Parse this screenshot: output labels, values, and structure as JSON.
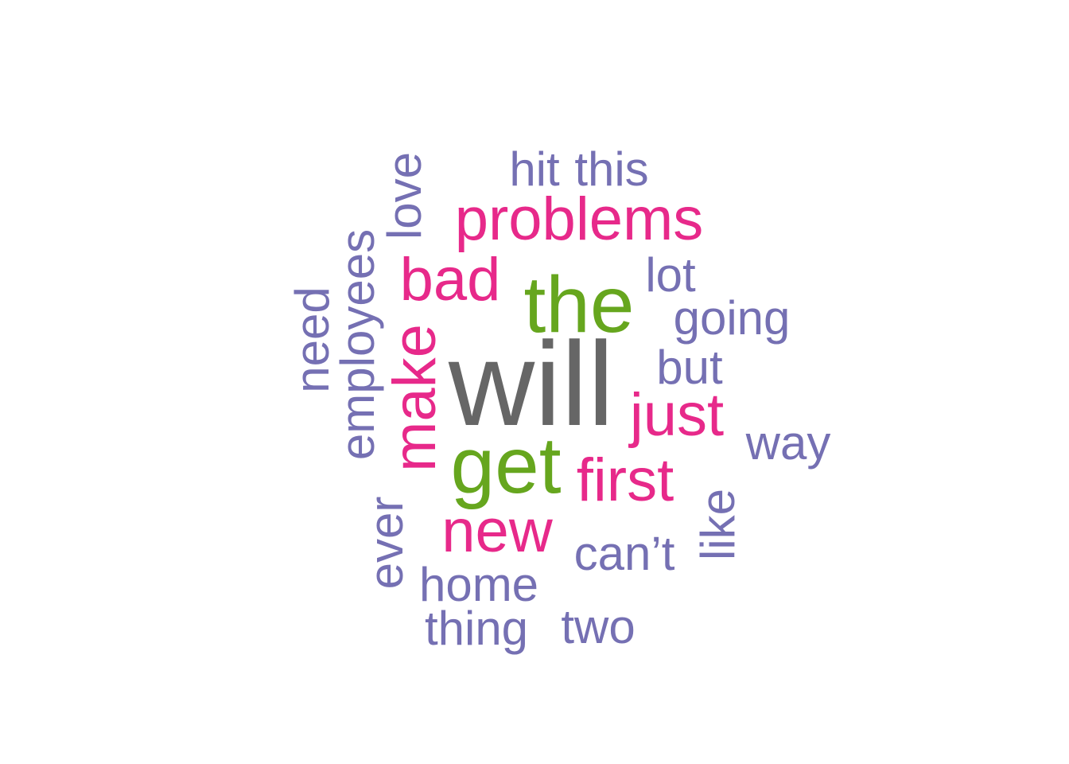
{
  "colors": {
    "background": "#ffffff",
    "top": "#666666",
    "second": "#66a61e",
    "third": "#e7298a",
    "rest": "#7570b3"
  },
  "words": [
    {
      "text": "will",
      "color": "top"
    },
    {
      "text": "the",
      "color": "second"
    },
    {
      "text": "get",
      "color": "second"
    },
    {
      "text": "problems",
      "color": "third"
    },
    {
      "text": "bad",
      "color": "third"
    },
    {
      "text": "make",
      "color": "third"
    },
    {
      "text": "just",
      "color": "third"
    },
    {
      "text": "first",
      "color": "third"
    },
    {
      "text": "new",
      "color": "third"
    },
    {
      "text": "hit",
      "color": "rest"
    },
    {
      "text": "this",
      "color": "rest"
    },
    {
      "text": "love",
      "color": "rest"
    },
    {
      "text": "employees",
      "color": "rest"
    },
    {
      "text": "need",
      "color": "rest"
    },
    {
      "text": "lot",
      "color": "rest"
    },
    {
      "text": "going",
      "color": "rest"
    },
    {
      "text": "but",
      "color": "rest"
    },
    {
      "text": "way",
      "color": "rest"
    },
    {
      "text": "like",
      "color": "rest"
    },
    {
      "text": "can’t",
      "color": "rest"
    },
    {
      "text": "ever",
      "color": "rest"
    },
    {
      "text": "home",
      "color": "rest"
    },
    {
      "text": "thing",
      "color": "rest"
    },
    {
      "text": "two",
      "color": "rest"
    }
  ]
}
